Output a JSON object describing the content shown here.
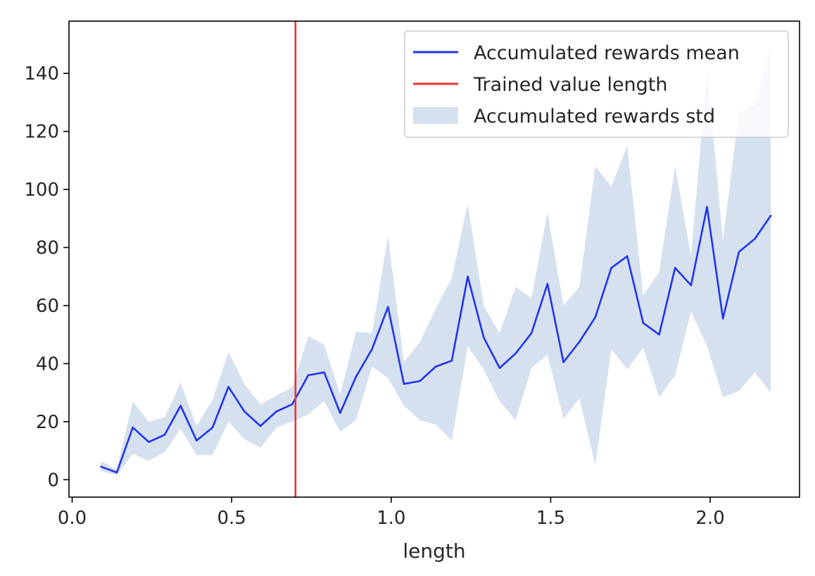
{
  "chart_data": {
    "type": "line",
    "title": "",
    "xlabel": "length",
    "ylabel": "",
    "xlim": [
      -0.01,
      2.28
    ],
    "ylim": [
      -6,
      158
    ],
    "xticks": [
      {
        "value": 0.0,
        "label": "0.0"
      },
      {
        "value": 0.5,
        "label": "0.5"
      },
      {
        "value": 1.0,
        "label": "1.0"
      },
      {
        "value": 1.5,
        "label": "1.5"
      },
      {
        "value": 2.0,
        "label": "2.0"
      }
    ],
    "yticks": [
      {
        "value": 0,
        "label": "0"
      },
      {
        "value": 20,
        "label": "20"
      },
      {
        "value": 40,
        "label": "40"
      },
      {
        "value": 60,
        "label": "60"
      },
      {
        "value": 80,
        "label": "80"
      },
      {
        "value": 100,
        "label": "100"
      },
      {
        "value": 120,
        "label": "120"
      },
      {
        "value": 140,
        "label": "140"
      }
    ],
    "grid": false,
    "legend_position": "top-right",
    "x": [
      0.09,
      0.14,
      0.19,
      0.24,
      0.29,
      0.34,
      0.39,
      0.44,
      0.49,
      0.54,
      0.59,
      0.64,
      0.69,
      0.74,
      0.79,
      0.84,
      0.89,
      0.94,
      0.99,
      1.04,
      1.09,
      1.14,
      1.19,
      1.24,
      1.29,
      1.34,
      1.39,
      1.44,
      1.49,
      1.54,
      1.59,
      1.64,
      1.69,
      1.74,
      1.79,
      1.84,
      1.89,
      1.94,
      1.99,
      2.04,
      2.09,
      2.14,
      2.19
    ],
    "series": [
      {
        "name": "Accumulated rewards mean",
        "color": "#2233ee",
        "values": [
          4.5,
          2.5,
          18,
          13,
          15.5,
          25.5,
          13.5,
          18,
          32,
          23.5,
          18.5,
          23.5,
          26,
          36,
          37,
          23,
          35.5,
          45,
          59.5,
          33,
          34,
          39,
          41,
          70,
          49,
          38.5,
          43.5,
          50.5,
          67.5,
          40.5,
          47.5,
          56,
          73,
          77,
          54,
          50,
          73,
          67,
          94,
          55.5,
          78.5,
          83,
          91
        ]
      },
      {
        "name": "Accumulated rewards std",
        "type": "band",
        "color": "#d5e1ee",
        "lower": [
          3,
          1.5,
          9,
          6.5,
          9.5,
          17.5,
          8.5,
          8.5,
          20,
          14,
          11,
          18,
          20,
          22.5,
          27,
          16.5,
          20.5,
          39,
          35,
          25.5,
          20.5,
          19,
          13.5,
          46,
          38,
          27,
          20.5,
          38.5,
          43,
          21,
          28,
          5,
          45,
          38,
          45.5,
          28.5,
          36,
          58,
          46,
          28.5,
          30.5,
          37,
          30
        ],
        "upper": [
          6.5,
          3.5,
          27,
          20,
          21.5,
          33.5,
          18.5,
          27.5,
          44,
          33,
          26,
          29,
          32,
          49.5,
          46.5,
          29.5,
          51,
          50.5,
          84,
          40.5,
          47.5,
          59,
          69.5,
          95,
          60,
          50.5,
          66.5,
          62.5,
          92,
          60,
          66.5,
          108,
          101,
          115,
          63.5,
          71.5,
          108,
          77,
          142,
          82.5,
          126.5,
          129,
          150
        ]
      }
    ],
    "vline": {
      "name": "Trained value length",
      "x": 0.7,
      "color": "#ee3333"
    },
    "legend": [
      {
        "label": "Accumulated rewards mean",
        "kind": "line",
        "color": "#2233ee"
      },
      {
        "label": "Trained value length",
        "kind": "line",
        "color": "#ee3333"
      },
      {
        "label": "Accumulated rewards std",
        "kind": "patch",
        "color": "#d5e1ee"
      }
    ]
  }
}
